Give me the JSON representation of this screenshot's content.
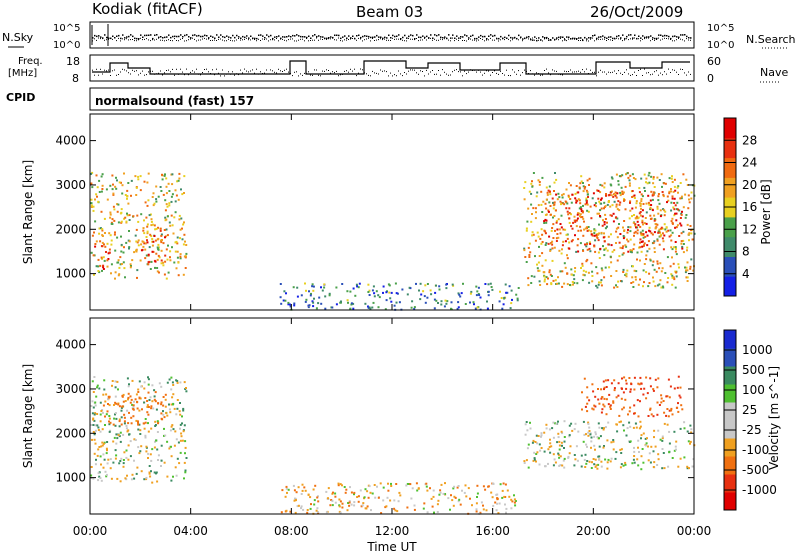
{
  "header": {
    "station": "Kodiak (fitACF)",
    "beam": "Beam 03",
    "date": "26/Oct/2009"
  },
  "labels": {
    "nsky": "N.Sky",
    "nsearch": "N.Search",
    "freq_line1": "Freq.",
    "freq_line2": "[MHz]",
    "nave": "Nave",
    "cpid_label": "CPID",
    "cpid_value": "normalsound (fast) 157"
  },
  "axis_ticks": {
    "noise_left": [
      "10^5",
      "10^0"
    ],
    "noise_right": [
      "10^5",
      "10^0"
    ],
    "freq_left": [
      "18",
      "8"
    ],
    "nave_right": [
      "60",
      "0"
    ]
  },
  "colors": {
    "power_scale": [
      "#1420e6",
      "#2a4fb8",
      "#3f8a6a",
      "#4aa04a",
      "#e8d020",
      "#f0a020",
      "#f06a10",
      "#e83010",
      "#e00000"
    ],
    "velocity_scale": [
      "#1a2ad0",
      "#2a4fb8",
      "#3a8a60",
      "#4fc030",
      "#c8c8c8",
      "#c8c8c8",
      "#f0a020",
      "#f07010",
      "#e83010",
      "#e00000"
    ]
  },
  "chart_data": [
    {
      "type": "heatmap",
      "name": "power",
      "xlabel": "",
      "ylabel": "Slant Range [km]",
      "x_ticks": [
        "00:00",
        "04:00",
        "08:00",
        "12:00",
        "16:00",
        "20:00",
        "00:00"
      ],
      "xlim_hours": [
        0,
        24
      ],
      "y_ticks": [
        1000,
        2000,
        3000,
        4000
      ],
      "ylim": [
        180,
        4600
      ],
      "colorbar": {
        "label": "Power [dB]",
        "ticks": [
          4,
          8,
          12,
          16,
          20,
          24,
          28
        ],
        "range": [
          0,
          30
        ]
      },
      "echo_regions": [
        {
          "start": 0.0,
          "end": 3.8,
          "range_min": 900,
          "range_max": 3300,
          "value": 16
        },
        {
          "start": 0.1,
          "end": 0.8,
          "range_min": 1100,
          "range_max": 1800,
          "value": 28
        },
        {
          "start": 2.0,
          "end": 3.0,
          "range_min": 1200,
          "range_max": 2100,
          "value": 24
        },
        {
          "start": 7.5,
          "end": 17.0,
          "range_min": 200,
          "range_max": 800,
          "value": 8
        },
        {
          "start": 17.2,
          "end": 24.0,
          "range_min": 700,
          "range_max": 3300,
          "value": 16
        },
        {
          "start": 18.0,
          "end": 23.5,
          "range_min": 1500,
          "range_max": 2900,
          "value": 24
        }
      ]
    },
    {
      "type": "heatmap",
      "name": "velocity",
      "xlabel": "Time UT",
      "ylabel": "Slant Range [km]",
      "x_ticks": [
        "00:00",
        "04:00",
        "08:00",
        "12:00",
        "16:00",
        "20:00",
        "00:00"
      ],
      "xlim_hours": [
        0,
        24
      ],
      "y_ticks": [
        1000,
        2000,
        3000,
        4000
      ],
      "ylim": [
        180,
        4600
      ],
      "colorbar": {
        "label": "Velocity [m s^-1]",
        "ticks": [
          "1000",
          "500",
          "100",
          "25",
          "-25",
          "-100",
          "-500",
          "-1000"
        ]
      },
      "echo_regions": [
        {
          "start": 0.0,
          "end": 3.8,
          "range_min": 900,
          "range_max": 3300,
          "value": 0
        },
        {
          "start": 0.5,
          "end": 3.0,
          "range_min": 2200,
          "range_max": 3000,
          "value": -200
        },
        {
          "start": 7.5,
          "end": 17.0,
          "range_min": 200,
          "range_max": 900,
          "value": -50
        },
        {
          "start": 17.2,
          "end": 24.0,
          "range_min": 1200,
          "range_max": 2300,
          "value": 0
        },
        {
          "start": 19.5,
          "end": 23.5,
          "range_min": 2400,
          "range_max": 3300,
          "value": -300
        }
      ]
    },
    {
      "type": "line",
      "name": "noise",
      "y_ticks": [
        "10^5",
        "10^0"
      ]
    },
    {
      "type": "line",
      "name": "frequency",
      "y_ticks": [
        "18",
        "8"
      ],
      "y2_ticks": [
        "60",
        "0"
      ]
    }
  ]
}
